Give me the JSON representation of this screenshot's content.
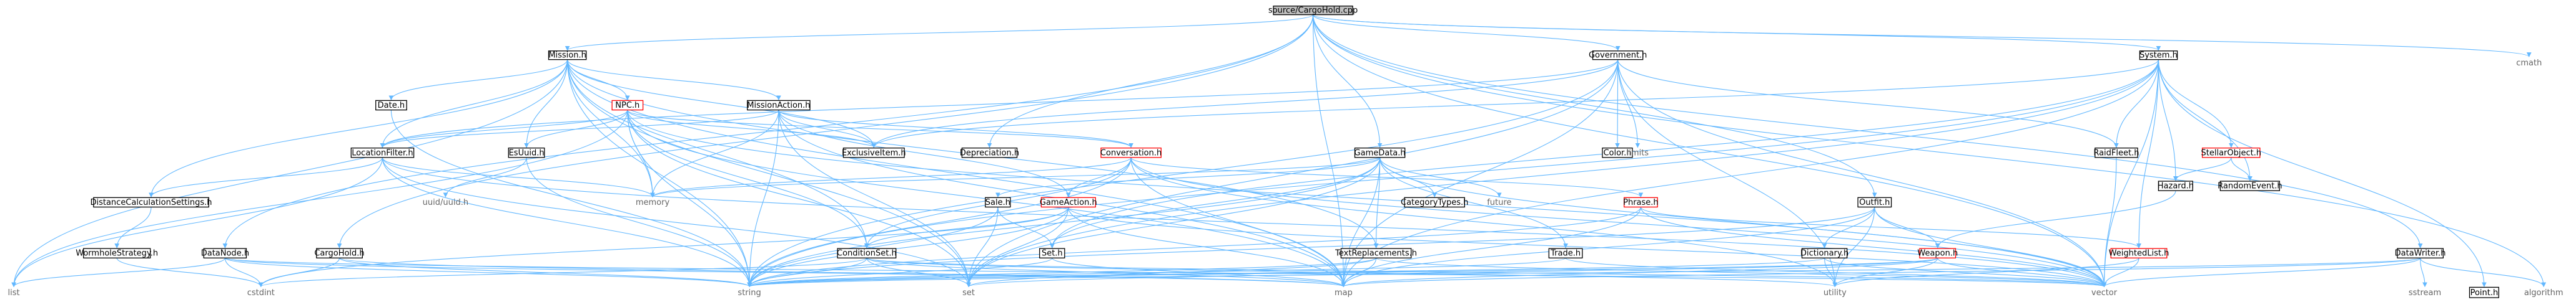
{
  "colors": {
    "edge": "#63b8ff",
    "node_border": "#000000",
    "link_border": "#ff0000",
    "plain_text": "#666666",
    "root_fill": "#bfbfbf",
    "node_fill": "#ffffff"
  },
  "nodes": [
    {
      "id": "root",
      "label": "source/CargoHold.cpp",
      "kind": "root"
    },
    {
      "id": "mission_h",
      "label": "Mission.h",
      "kind": "node"
    },
    {
      "id": "government_h",
      "label": "Government.h",
      "kind": "node"
    },
    {
      "id": "system_h",
      "label": "System.h",
      "kind": "node"
    },
    {
      "id": "cmath",
      "label": "cmath",
      "kind": "plain"
    },
    {
      "id": "date_h",
      "label": "Date.h",
      "kind": "node"
    },
    {
      "id": "npc_h",
      "label": "NPC.h",
      "kind": "link"
    },
    {
      "id": "missionaction_h",
      "label": "MissionAction.h",
      "kind": "node"
    },
    {
      "id": "locationfilter_h",
      "label": "LocationFilter.h",
      "kind": "node"
    },
    {
      "id": "esuuid_h",
      "label": "EsUuid.h",
      "kind": "node"
    },
    {
      "id": "exclusiveitem_h",
      "label": "ExclusiveItem.h",
      "kind": "node"
    },
    {
      "id": "depreciation_h",
      "label": "Depreciation.h",
      "kind": "node"
    },
    {
      "id": "conversation_h",
      "label": "Conversation.h",
      "kind": "link"
    },
    {
      "id": "gamedata_h",
      "label": "GameData.h",
      "kind": "node"
    },
    {
      "id": "color_h",
      "label": "Color.h",
      "kind": "node"
    },
    {
      "id": "limits",
      "label": "limits",
      "kind": "plain"
    },
    {
      "id": "raidfleet_h",
      "label": "RaidFleet.h",
      "kind": "node"
    },
    {
      "id": "stellarobject_h",
      "label": "StellarObject.h",
      "kind": "link"
    },
    {
      "id": "hazard_h",
      "label": "Hazard.h",
      "kind": "node"
    },
    {
      "id": "randomevent_h",
      "label": "RandomEvent.h",
      "kind": "node"
    },
    {
      "id": "distancecalc_h",
      "label": "DistanceCalculationSettings.h",
      "kind": "node"
    },
    {
      "id": "uuid_h",
      "label": "uuid/uuid.h",
      "kind": "plain"
    },
    {
      "id": "memory",
      "label": "memory",
      "kind": "plain"
    },
    {
      "id": "categorytypes_h",
      "label": "CategoryTypes.h",
      "kind": "node"
    },
    {
      "id": "future",
      "label": "future",
      "kind": "plain"
    },
    {
      "id": "sale_h",
      "label": "Sale.h",
      "kind": "node"
    },
    {
      "id": "gameaction_h",
      "label": "GameAction.h",
      "kind": "link"
    },
    {
      "id": "phrase_h",
      "label": "Phrase.h",
      "kind": "link"
    },
    {
      "id": "outfit_h",
      "label": "Outfit.h",
      "kind": "node"
    },
    {
      "id": "wormhole_h",
      "label": "WormholeStrategy.h",
      "kind": "node"
    },
    {
      "id": "datanode_h",
      "label": "DataNode.h",
      "kind": "node"
    },
    {
      "id": "cargohold_h",
      "label": "CargoHold.h",
      "kind": "node"
    },
    {
      "id": "conditionset_h",
      "label": "ConditionSet.h",
      "kind": "node"
    },
    {
      "id": "set_h",
      "label": "Set.h",
      "kind": "node"
    },
    {
      "id": "textreplacements_h",
      "label": "TextReplacements.h",
      "kind": "node"
    },
    {
      "id": "trade_h",
      "label": "Trade.h",
      "kind": "node"
    },
    {
      "id": "dictionary_h",
      "label": "Dictionary.h",
      "kind": "node"
    },
    {
      "id": "weapon_h",
      "label": "Weapon.h",
      "kind": "link"
    },
    {
      "id": "weightedlist_h",
      "label": "WeightedList.h",
      "kind": "link"
    },
    {
      "id": "datawriter_h",
      "label": "DataWriter.h",
      "kind": "node"
    },
    {
      "id": "list",
      "label": "list",
      "kind": "plain"
    },
    {
      "id": "cstdint",
      "label": "cstdint",
      "kind": "plain"
    },
    {
      "id": "string",
      "label": "string",
      "kind": "plain"
    },
    {
      "id": "set",
      "label": "set",
      "kind": "plain"
    },
    {
      "id": "map",
      "label": "map",
      "kind": "plain"
    },
    {
      "id": "utility",
      "label": "utility",
      "kind": "plain"
    },
    {
      "id": "vector",
      "label": "vector",
      "kind": "plain"
    },
    {
      "id": "sstream",
      "label": "sstream",
      "kind": "plain"
    },
    {
      "id": "point_h",
      "label": "Point.h",
      "kind": "node"
    },
    {
      "id": "algorithm",
      "label": "algorithm",
      "kind": "plain"
    }
  ],
  "edges": [
    [
      "root",
      "mission_h"
    ],
    [
      "root",
      "government_h"
    ],
    [
      "root",
      "system_h"
    ],
    [
      "root",
      "cmath"
    ],
    [
      "root",
      "outfit_h"
    ],
    [
      "root",
      "datawriter_h"
    ],
    [
      "root",
      "gamedata_h"
    ],
    [
      "root",
      "cargohold_h"
    ],
    [
      "root",
      "depreciation_h"
    ],
    [
      "root",
      "map"
    ],
    [
      "root",
      "vector"
    ],
    [
      "root",
      "algorithm"
    ],
    [
      "root",
      "datanode_h"
    ],
    [
      "mission_h",
      "date_h"
    ],
    [
      "mission_h",
      "npc_h"
    ],
    [
      "mission_h",
      "missionaction_h"
    ],
    [
      "mission_h",
      "locationfilter_h"
    ],
    [
      "mission_h",
      "esuuid_h"
    ],
    [
      "mission_h",
      "distancecalc_h"
    ],
    [
      "mission_h",
      "conditionset_h"
    ],
    [
      "mission_h",
      "textreplacements_h"
    ],
    [
      "mission_h",
      "list"
    ],
    [
      "mission_h",
      "map"
    ],
    [
      "mission_h",
      "set"
    ],
    [
      "mission_h",
      "string"
    ],
    [
      "mission_h",
      "memory"
    ],
    [
      "mission_h",
      "exclusiveitem_h"
    ],
    [
      "npc_h",
      "conversation_h"
    ],
    [
      "npc_h",
      "exclusiveitem_h"
    ],
    [
      "npc_h",
      "locationfilter_h"
    ],
    [
      "npc_h",
      "esuuid_h"
    ],
    [
      "npc_h",
      "conditionset_h"
    ],
    [
      "npc_h",
      "list"
    ],
    [
      "npc_h",
      "map"
    ],
    [
      "npc_h",
      "memory"
    ],
    [
      "npc_h",
      "set"
    ],
    [
      "npc_h",
      "string"
    ],
    [
      "npc_h",
      "vector"
    ],
    [
      "missionaction_h",
      "conversation_h"
    ],
    [
      "missionaction_h",
      "exclusiveitem_h"
    ],
    [
      "missionaction_h",
      "locationfilter_h"
    ],
    [
      "missionaction_h",
      "gameaction_h"
    ],
    [
      "missionaction_h",
      "map"
    ],
    [
      "missionaction_h",
      "memory"
    ],
    [
      "missionaction_h",
      "set"
    ],
    [
      "missionaction_h",
      "string"
    ],
    [
      "date_h",
      "string"
    ],
    [
      "locationfilter_h",
      "distancecalc_h"
    ],
    [
      "locationfilter_h",
      "list"
    ],
    [
      "locationfilter_h",
      "memory"
    ],
    [
      "locationfilter_h",
      "set"
    ],
    [
      "locationfilter_h",
      "string"
    ],
    [
      "locationfilter_h",
      "vector"
    ],
    [
      "esuuid_h",
      "uuid_h"
    ],
    [
      "esuuid_h",
      "string"
    ],
    [
      "distancecalc_h",
      "wormhole_h"
    ],
    [
      "wormhole_h",
      "cstdint"
    ],
    [
      "conversation_h",
      "conditionset_h"
    ],
    [
      "conversation_h",
      "gameaction_h"
    ],
    [
      "conversation_h",
      "phrase_h"
    ],
    [
      "conversation_h",
      "map"
    ],
    [
      "conversation_h",
      "string"
    ],
    [
      "conversation_h",
      "utility"
    ],
    [
      "conversation_h",
      "vector"
    ],
    [
      "conversation_h",
      "memory"
    ],
    [
      "gameaction_h",
      "conditionset_h"
    ],
    [
      "gameaction_h",
      "map"
    ],
    [
      "gameaction_h",
      "set"
    ],
    [
      "gameaction_h",
      "string"
    ],
    [
      "gameaction_h",
      "vector"
    ],
    [
      "gameaction_h",
      "cstdint"
    ],
    [
      "conditionset_h",
      "map"
    ],
    [
      "conditionset_h",
      "set"
    ],
    [
      "conditionset_h",
      "string"
    ],
    [
      "conditionset_h",
      "utility"
    ],
    [
      "conditionset_h",
      "vector"
    ],
    [
      "conditionset_h",
      "cstdint"
    ],
    [
      "government_h",
      "color_h"
    ],
    [
      "government_h",
      "limits"
    ],
    [
      "government_h",
      "locationfilter_h"
    ],
    [
      "government_h",
      "exclusiveitem_h"
    ],
    [
      "government_h",
      "raidfleet_h"
    ],
    [
      "government_h",
      "set"
    ],
    [
      "government_h",
      "map"
    ],
    [
      "government_h",
      "string"
    ],
    [
      "government_h",
      "utility"
    ],
    [
      "government_h",
      "vector"
    ],
    [
      "gamedata_h",
      "categorytypes_h"
    ],
    [
      "gamedata_h",
      "future"
    ],
    [
      "gamedata_h",
      "sale_h"
    ],
    [
      "gamedata_h",
      "set_h"
    ],
    [
      "gamedata_h",
      "trade_h"
    ],
    [
      "gamedata_h",
      "textreplacements_h"
    ],
    [
      "gamedata_h",
      "map"
    ],
    [
      "gamedata_h",
      "memory"
    ],
    [
      "gamedata_h",
      "string"
    ],
    [
      "gamedata_h",
      "vector"
    ],
    [
      "gamedata_h",
      "set"
    ],
    [
      "sale_h",
      "set_h"
    ],
    [
      "sale_h",
      "set"
    ],
    [
      "sale_h",
      "string"
    ],
    [
      "set_h",
      "map"
    ],
    [
      "set_h",
      "string"
    ],
    [
      "textreplacements_h",
      "map"
    ],
    [
      "textreplacements_h",
      "string"
    ],
    [
      "textreplacements_h",
      "set"
    ],
    [
      "textreplacements_h",
      "vector"
    ],
    [
      "trade_h",
      "string"
    ],
    [
      "trade_h",
      "vector"
    ],
    [
      "system_h",
      "raidfleet_h"
    ],
    [
      "system_h",
      "stellarobject_h"
    ],
    [
      "system_h",
      "hazard_h"
    ],
    [
      "system_h",
      "randomevent_h"
    ],
    [
      "system_h",
      "weightedlist_h"
    ],
    [
      "system_h",
      "point_h"
    ],
    [
      "system_h",
      "set_h"
    ],
    [
      "system_h",
      "set"
    ],
    [
      "system_h",
      "map"
    ],
    [
      "system_h",
      "string"
    ],
    [
      "system_h",
      "vector"
    ],
    [
      "system_h",
      "exclusiveitem_h"
    ],
    [
      "stellarobject_h",
      "hazard_h"
    ],
    [
      "stellarobject_h",
      "randomevent_h"
    ],
    [
      "hazard_h",
      "weapon_h"
    ],
    [
      "outfit_h",
      "dictionary_h"
    ],
    [
      "outfit_h",
      "weapon_h"
    ],
    [
      "outfit_h",
      "map"
    ],
    [
      "outfit_h",
      "string"
    ],
    [
      "outfit_h",
      "utility"
    ],
    [
      "outfit_h",
      "vector"
    ],
    [
      "dictionary_h",
      "string"
    ],
    [
      "dictionary_h",
      "utility"
    ],
    [
      "dictionary_h",
      "vector"
    ],
    [
      "weapon_h",
      "map"
    ],
    [
      "weapon_h",
      "set"
    ],
    [
      "weapon_h",
      "string"
    ],
    [
      "weapon_h",
      "utility"
    ],
    [
      "weapon_h",
      "vector"
    ],
    [
      "phrase_h",
      "weightedlist_h"
    ],
    [
      "phrase_h",
      "map"
    ],
    [
      "phrase_h",
      "string"
    ],
    [
      "phrase_h",
      "vector"
    ],
    [
      "weightedlist_h",
      "vector"
    ],
    [
      "weightedlist_h",
      "utility"
    ],
    [
      "raidfleet_h",
      "vector"
    ],
    [
      "datanode_h",
      "list"
    ],
    [
      "datanode_h",
      "cstdint"
    ],
    [
      "datanode_h",
      "string"
    ],
    [
      "datanode_h",
      "vector"
    ],
    [
      "datanode_h",
      "map"
    ],
    [
      "cargohold_h",
      "map"
    ],
    [
      "cargohold_h",
      "string"
    ],
    [
      "cargohold_h",
      "cstdint"
    ],
    [
      "datawriter_h",
      "sstream"
    ],
    [
      "datawriter_h",
      "string"
    ],
    [
      "datawriter_h",
      "vector"
    ],
    [
      "datawriter_h",
      "algorithm"
    ],
    [
      "datawriter_h",
      "map"
    ]
  ]
}
